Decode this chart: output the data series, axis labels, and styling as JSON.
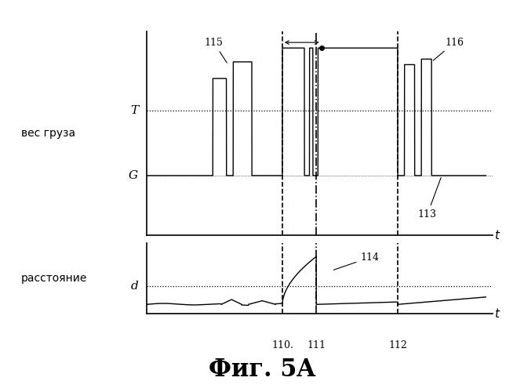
{
  "title": "Фиг. 5A",
  "top_ylabel": "вес груза",
  "bottom_ylabel": "расстояние",
  "T_label": "T",
  "G_label": "G",
  "d_label": "d",
  "vline_labels": [
    "110.",
    "111",
    "112"
  ],
  "vline_positions": [
    0.4,
    0.5,
    0.74
  ],
  "label_115": "115",
  "label_116": "116",
  "label_113": "113",
  "label_114": "114",
  "T_level": 0.55,
  "G_level": 0.08,
  "d_level": 0.3,
  "fig_width": 6.68,
  "fig_height": 5.0
}
